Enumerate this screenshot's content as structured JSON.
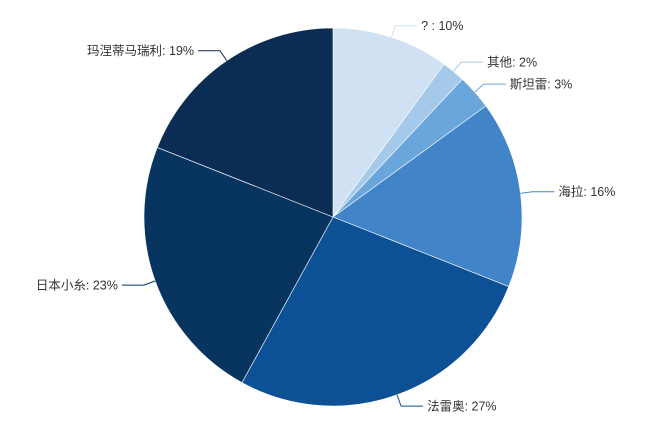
{
  "chart_data": {
    "type": "pie",
    "title": "",
    "slices": [
      {
        "label": "?",
        "value": 10,
        "display": "? : 10%",
        "color": "#cfe1f3"
      },
      {
        "label": "其他",
        "value": 2,
        "display": "其他: 2%",
        "color": "#a4c9ea"
      },
      {
        "label": "斯坦雷",
        "value": 3,
        "display": "斯坦雷: 3%",
        "color": "#6aa5dc"
      },
      {
        "label": "海拉",
        "value": 16,
        "display": "海拉: 16%",
        "color": "#4185c8"
      },
      {
        "label": "法雷奥",
        "value": 27,
        "display": "法雷奥: 27%",
        "color": "#0c5196"
      },
      {
        "label": "日本小糸",
        "value": 23,
        "display": "日本小糸: 23%",
        "color": "#083460"
      },
      {
        "label": "玛涅蒂马瑞利",
        "value": 19,
        "display": "玛涅蒂马瑞利: 19%",
        "color": "#0b2d53"
      }
    ],
    "start_angle": "12 o'clock",
    "direction": "clockwise",
    "legend": "none"
  }
}
